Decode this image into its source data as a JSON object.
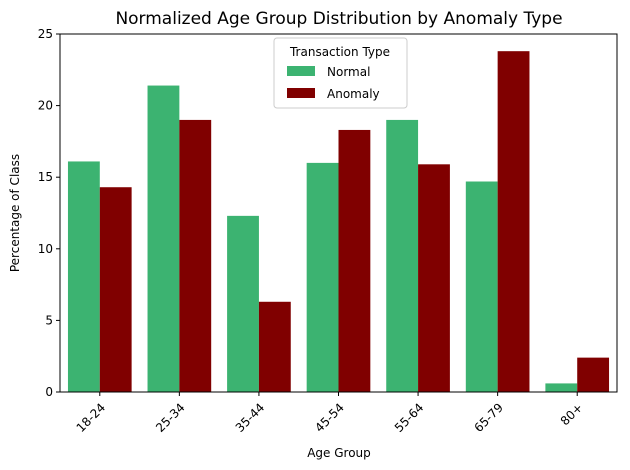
{
  "chart_data": {
    "type": "bar",
    "title": "Normalized Age Group Distribution by Anomaly Type",
    "xlabel": "Age Group",
    "ylabel": "Percentage of Class",
    "ylim": [
      0,
      25
    ],
    "yticks": [
      0,
      5,
      10,
      15,
      20,
      25
    ],
    "categories": [
      "18-24",
      "25-34",
      "35-44",
      "45-54",
      "55-64",
      "65-79",
      "80+"
    ],
    "series": [
      {
        "name": "Normal",
        "color": "#3cb371",
        "values": [
          16.1,
          21.4,
          12.3,
          16.0,
          19.0,
          14.7,
          0.6
        ]
      },
      {
        "name": "Anomaly",
        "color": "#800000",
        "values": [
          14.3,
          19.0,
          6.3,
          18.3,
          15.9,
          23.8,
          2.4
        ]
      }
    ],
    "legend": {
      "title": "Transaction Type",
      "placement": "top-center"
    },
    "grid": false
  }
}
